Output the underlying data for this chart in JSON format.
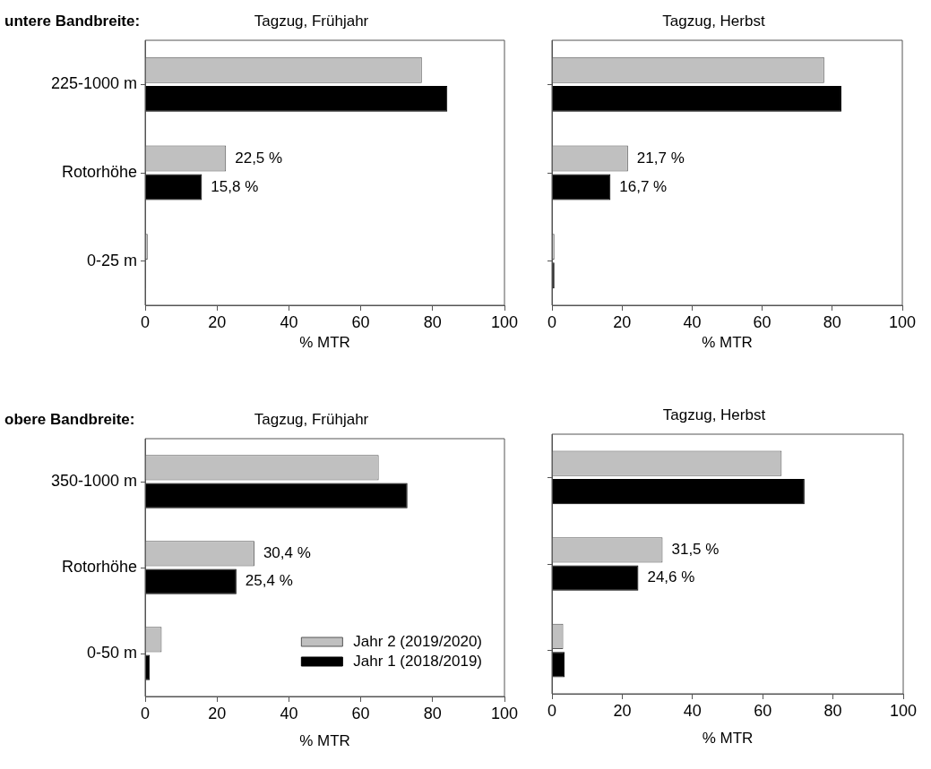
{
  "chart_data": [
    {
      "type": "bar",
      "orientation": "horizontal",
      "subtitle": "untere Bandbreite:",
      "title": "Tagzug, Frühjahr",
      "xlabel": "% MTR",
      "categories": [
        "225-1000 m",
        "Rotorhöhe",
        "0-25 m"
      ],
      "xlim": [
        0,
        100
      ],
      "xticks": [
        0,
        20,
        40,
        60,
        80,
        100
      ],
      "series": [
        {
          "color": "#c0c0c0",
          "values": [
            77.0,
            22.5,
            0.7
          ],
          "value_labels": [
            null,
            "22,5 %",
            null
          ]
        },
        {
          "color": "#000000",
          "values": [
            84.1,
            15.8,
            0.2
          ],
          "value_labels": [
            null,
            "15,8 %",
            null
          ]
        }
      ]
    },
    {
      "type": "bar",
      "orientation": "horizontal",
      "title": "Tagzug, Herbst",
      "xlabel": "% MTR",
      "categories": [
        null,
        null,
        null
      ],
      "xlim": [
        0,
        100
      ],
      "xticks": [
        0,
        20,
        40,
        60,
        80,
        100
      ],
      "series": [
        {
          "color": "#c0c0c0",
          "values": [
            77.7,
            21.7,
            0.7
          ],
          "value_labels": [
            null,
            "21,7 %",
            null
          ]
        },
        {
          "color": "#000000",
          "values": [
            82.6,
            16.7,
            0.7
          ],
          "value_labels": [
            null,
            "16,7 %",
            null
          ]
        }
      ]
    },
    {
      "type": "bar",
      "orientation": "horizontal",
      "subtitle": "obere Bandbreite:",
      "title": "Tagzug, Frühjahr",
      "xlabel": "% MTR",
      "categories": [
        "350-1000 m",
        "Rotorhöhe",
        "0-50 m"
      ],
      "xlim": [
        0,
        100
      ],
      "xticks": [
        0,
        20,
        40,
        60,
        80,
        100
      ],
      "legend": "bottom right",
      "series": [
        {
          "name": "Jahr 2 (2019/2020)",
          "color": "#c0c0c0",
          "values": [
            65.0,
            30.4,
            4.6
          ],
          "value_labels": [
            null,
            "30,4 %",
            null
          ]
        },
        {
          "name": "Jahr 1 (2018/2019)",
          "color": "#000000",
          "values": [
            73.0,
            25.4,
            1.3
          ],
          "value_labels": [
            null,
            "25,4 %",
            null
          ]
        }
      ]
    },
    {
      "type": "bar",
      "orientation": "horizontal",
      "title": "Tagzug, Herbst",
      "xlabel": "% MTR",
      "categories": [
        null,
        null,
        null
      ],
      "xlim": [
        0,
        100
      ],
      "xticks": [
        0,
        20,
        40,
        60,
        80,
        100
      ],
      "series": [
        {
          "color": "#c0c0c0",
          "values": [
            65.4,
            31.5,
            3.2
          ],
          "value_labels": [
            null,
            "31,5 %",
            null
          ]
        },
        {
          "color": "#000000",
          "values": [
            71.9,
            24.6,
            3.6
          ],
          "value_labels": [
            null,
            "24,6 %",
            null
          ]
        }
      ]
    }
  ]
}
